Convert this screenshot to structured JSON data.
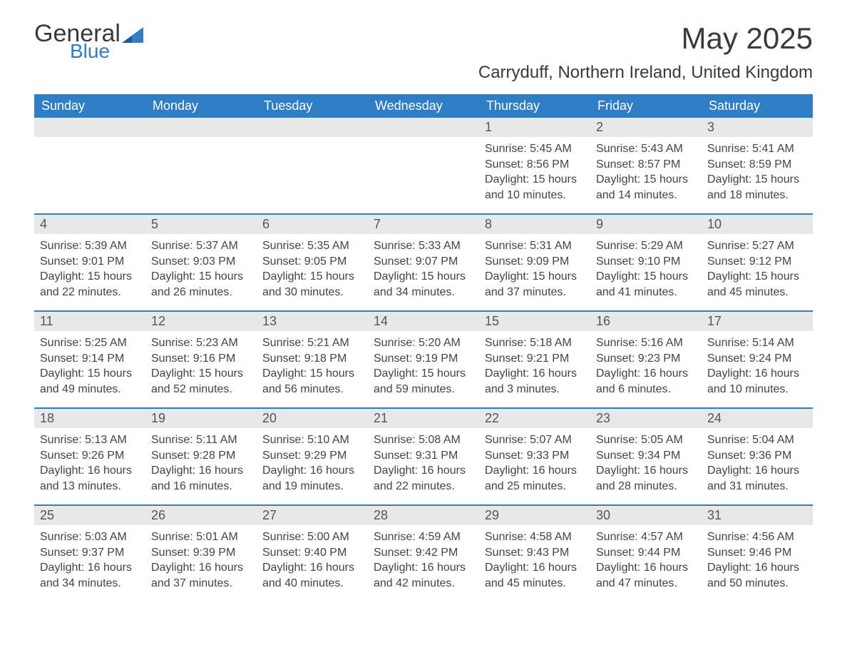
{
  "logo": {
    "general": "General",
    "blue": "Blue"
  },
  "title": "May 2025",
  "location": "Carryduff, Northern Ireland, United Kingdom",
  "colors": {
    "header_bg": "#2f7dc4",
    "header_text": "#ffffff",
    "daynum_bg": "#e8e8e8",
    "body_text": "#444444",
    "week_border": "#2f7dc4",
    "page_bg": "#ffffff"
  },
  "weekdays": [
    "Sunday",
    "Monday",
    "Tuesday",
    "Wednesday",
    "Thursday",
    "Friday",
    "Saturday"
  ],
  "weeks": [
    [
      null,
      null,
      null,
      null,
      {
        "n": "1",
        "sr": "Sunrise: 5:45 AM",
        "ss": "Sunset: 8:56 PM",
        "d1": "Daylight: 15 hours",
        "d2": "and 10 minutes."
      },
      {
        "n": "2",
        "sr": "Sunrise: 5:43 AM",
        "ss": "Sunset: 8:57 PM",
        "d1": "Daylight: 15 hours",
        "d2": "and 14 minutes."
      },
      {
        "n": "3",
        "sr": "Sunrise: 5:41 AM",
        "ss": "Sunset: 8:59 PM",
        "d1": "Daylight: 15 hours",
        "d2": "and 18 minutes."
      }
    ],
    [
      {
        "n": "4",
        "sr": "Sunrise: 5:39 AM",
        "ss": "Sunset: 9:01 PM",
        "d1": "Daylight: 15 hours",
        "d2": "and 22 minutes."
      },
      {
        "n": "5",
        "sr": "Sunrise: 5:37 AM",
        "ss": "Sunset: 9:03 PM",
        "d1": "Daylight: 15 hours",
        "d2": "and 26 minutes."
      },
      {
        "n": "6",
        "sr": "Sunrise: 5:35 AM",
        "ss": "Sunset: 9:05 PM",
        "d1": "Daylight: 15 hours",
        "d2": "and 30 minutes."
      },
      {
        "n": "7",
        "sr": "Sunrise: 5:33 AM",
        "ss": "Sunset: 9:07 PM",
        "d1": "Daylight: 15 hours",
        "d2": "and 34 minutes."
      },
      {
        "n": "8",
        "sr": "Sunrise: 5:31 AM",
        "ss": "Sunset: 9:09 PM",
        "d1": "Daylight: 15 hours",
        "d2": "and 37 minutes."
      },
      {
        "n": "9",
        "sr": "Sunrise: 5:29 AM",
        "ss": "Sunset: 9:10 PM",
        "d1": "Daylight: 15 hours",
        "d2": "and 41 minutes."
      },
      {
        "n": "10",
        "sr": "Sunrise: 5:27 AM",
        "ss": "Sunset: 9:12 PM",
        "d1": "Daylight: 15 hours",
        "d2": "and 45 minutes."
      }
    ],
    [
      {
        "n": "11",
        "sr": "Sunrise: 5:25 AM",
        "ss": "Sunset: 9:14 PM",
        "d1": "Daylight: 15 hours",
        "d2": "and 49 minutes."
      },
      {
        "n": "12",
        "sr": "Sunrise: 5:23 AM",
        "ss": "Sunset: 9:16 PM",
        "d1": "Daylight: 15 hours",
        "d2": "and 52 minutes."
      },
      {
        "n": "13",
        "sr": "Sunrise: 5:21 AM",
        "ss": "Sunset: 9:18 PM",
        "d1": "Daylight: 15 hours",
        "d2": "and 56 minutes."
      },
      {
        "n": "14",
        "sr": "Sunrise: 5:20 AM",
        "ss": "Sunset: 9:19 PM",
        "d1": "Daylight: 15 hours",
        "d2": "and 59 minutes."
      },
      {
        "n": "15",
        "sr": "Sunrise: 5:18 AM",
        "ss": "Sunset: 9:21 PM",
        "d1": "Daylight: 16 hours",
        "d2": "and 3 minutes."
      },
      {
        "n": "16",
        "sr": "Sunrise: 5:16 AM",
        "ss": "Sunset: 9:23 PM",
        "d1": "Daylight: 16 hours",
        "d2": "and 6 minutes."
      },
      {
        "n": "17",
        "sr": "Sunrise: 5:14 AM",
        "ss": "Sunset: 9:24 PM",
        "d1": "Daylight: 16 hours",
        "d2": "and 10 minutes."
      }
    ],
    [
      {
        "n": "18",
        "sr": "Sunrise: 5:13 AM",
        "ss": "Sunset: 9:26 PM",
        "d1": "Daylight: 16 hours",
        "d2": "and 13 minutes."
      },
      {
        "n": "19",
        "sr": "Sunrise: 5:11 AM",
        "ss": "Sunset: 9:28 PM",
        "d1": "Daylight: 16 hours",
        "d2": "and 16 minutes."
      },
      {
        "n": "20",
        "sr": "Sunrise: 5:10 AM",
        "ss": "Sunset: 9:29 PM",
        "d1": "Daylight: 16 hours",
        "d2": "and 19 minutes."
      },
      {
        "n": "21",
        "sr": "Sunrise: 5:08 AM",
        "ss": "Sunset: 9:31 PM",
        "d1": "Daylight: 16 hours",
        "d2": "and 22 minutes."
      },
      {
        "n": "22",
        "sr": "Sunrise: 5:07 AM",
        "ss": "Sunset: 9:33 PM",
        "d1": "Daylight: 16 hours",
        "d2": "and 25 minutes."
      },
      {
        "n": "23",
        "sr": "Sunrise: 5:05 AM",
        "ss": "Sunset: 9:34 PM",
        "d1": "Daylight: 16 hours",
        "d2": "and 28 minutes."
      },
      {
        "n": "24",
        "sr": "Sunrise: 5:04 AM",
        "ss": "Sunset: 9:36 PM",
        "d1": "Daylight: 16 hours",
        "d2": "and 31 minutes."
      }
    ],
    [
      {
        "n": "25",
        "sr": "Sunrise: 5:03 AM",
        "ss": "Sunset: 9:37 PM",
        "d1": "Daylight: 16 hours",
        "d2": "and 34 minutes."
      },
      {
        "n": "26",
        "sr": "Sunrise: 5:01 AM",
        "ss": "Sunset: 9:39 PM",
        "d1": "Daylight: 16 hours",
        "d2": "and 37 minutes."
      },
      {
        "n": "27",
        "sr": "Sunrise: 5:00 AM",
        "ss": "Sunset: 9:40 PM",
        "d1": "Daylight: 16 hours",
        "d2": "and 40 minutes."
      },
      {
        "n": "28",
        "sr": "Sunrise: 4:59 AM",
        "ss": "Sunset: 9:42 PM",
        "d1": "Daylight: 16 hours",
        "d2": "and 42 minutes."
      },
      {
        "n": "29",
        "sr": "Sunrise: 4:58 AM",
        "ss": "Sunset: 9:43 PM",
        "d1": "Daylight: 16 hours",
        "d2": "and 45 minutes."
      },
      {
        "n": "30",
        "sr": "Sunrise: 4:57 AM",
        "ss": "Sunset: 9:44 PM",
        "d1": "Daylight: 16 hours",
        "d2": "and 47 minutes."
      },
      {
        "n": "31",
        "sr": "Sunrise: 4:56 AM",
        "ss": "Sunset: 9:46 PM",
        "d1": "Daylight: 16 hours",
        "d2": "and 50 minutes."
      }
    ]
  ]
}
